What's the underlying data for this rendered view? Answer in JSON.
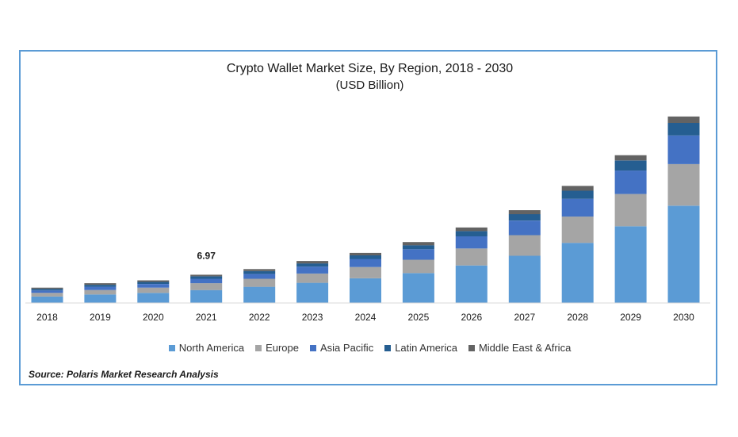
{
  "chart_data": {
    "type": "bar",
    "stacked": true,
    "title": "Crypto Wallet Market Size, By Region, 2018 - 2030",
    "subtitle": "(USD Billion)",
    "xlabel": "",
    "ylabel": "",
    "ylim": [
      0,
      45
    ],
    "categories": [
      "2018",
      "2019",
      "2020",
      "2021",
      "2022",
      "2023",
      "2024",
      "2025",
      "2026",
      "2027",
      "2028",
      "2029",
      "2030"
    ],
    "series": [
      {
        "name": "North America",
        "color": "#5b9bd5",
        "values": [
          1.6,
          2.1,
          2.5,
          3.2,
          4.0,
          5.0,
          6.1,
          7.4,
          9.3,
          11.7,
          14.9,
          19.0,
          24.1
        ]
      },
      {
        "name": "Europe",
        "color": "#a5a5a5",
        "values": [
          0.9,
          1.1,
          1.3,
          1.7,
          2.0,
          2.3,
          2.8,
          3.3,
          4.2,
          5.1,
          6.5,
          8.0,
          10.3
        ]
      },
      {
        "name": "Asia Pacific",
        "color": "#4472c4",
        "values": [
          0.6,
          0.8,
          0.9,
          1.1,
          1.2,
          1.7,
          2.0,
          2.6,
          3.0,
          3.6,
          4.4,
          5.8,
          7.1
        ]
      },
      {
        "name": "Latin America",
        "color": "#255e91",
        "values": [
          0.4,
          0.5,
          0.5,
          0.6,
          0.7,
          0.8,
          0.9,
          1.0,
          1.3,
          1.6,
          2.0,
          2.5,
          3.1
        ]
      },
      {
        "name": "Middle East & Africa",
        "color": "#636363",
        "values": [
          0.3,
          0.4,
          0.4,
          0.4,
          0.5,
          0.6,
          0.6,
          0.8,
          0.9,
          1.0,
          1.2,
          1.3,
          1.6
        ]
      }
    ],
    "annotations": [
      {
        "category": "2021",
        "text": "6.97"
      }
    ],
    "legend_position": "bottom",
    "grid": false
  },
  "source": "Source: Polaris  Market Research Analysis"
}
